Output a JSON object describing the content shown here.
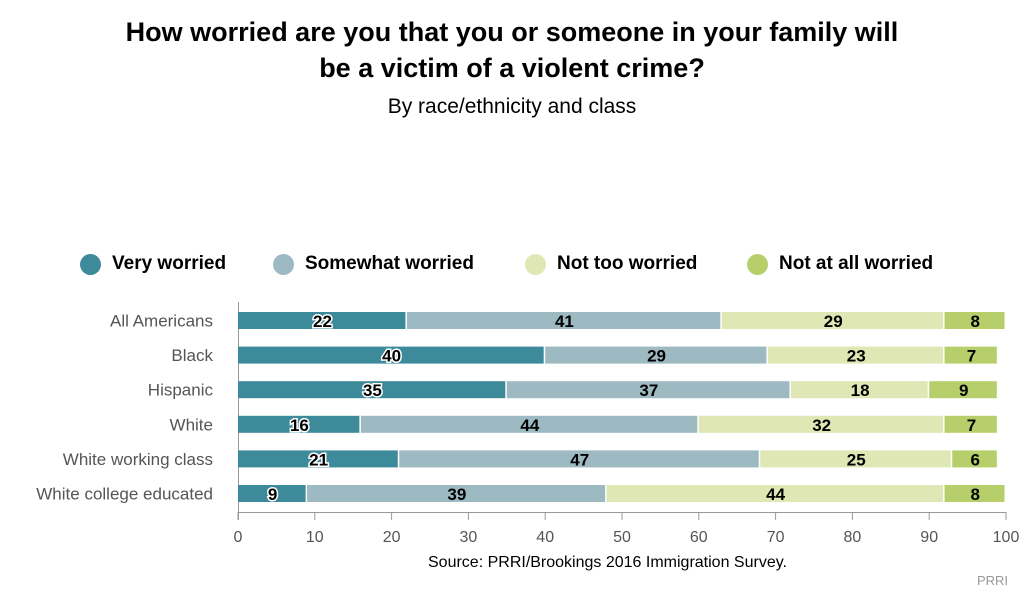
{
  "chart_data": {
    "type": "bar",
    "orientation": "horizontal",
    "stacked": true,
    "title_lines": [
      "How worried are you that you or someone in your family will",
      "be a victim of a violent crime?"
    ],
    "subtitle": "By race/ethnicity and class",
    "categories": [
      "All Americans",
      "Black",
      "Hispanic",
      "White",
      "White working class",
      "White college educated"
    ],
    "series": [
      {
        "name": "Very worried",
        "color": "#3d8a9b",
        "values": [
          22,
          40,
          35,
          16,
          21,
          9
        ]
      },
      {
        "name": "Somewhat worried",
        "color": "#9db9c2",
        "values": [
          41,
          29,
          37,
          44,
          47,
          39
        ]
      },
      {
        "name": "Not too worried",
        "color": "#dfe8b4",
        "values": [
          29,
          23,
          18,
          32,
          25,
          44
        ]
      },
      {
        "name": "Not at all worried",
        "color": "#b6cf6a",
        "values": [
          8,
          7,
          9,
          7,
          6,
          8
        ]
      }
    ],
    "x_ticks": [
      0,
      10,
      20,
      30,
      40,
      50,
      60,
      70,
      80,
      90,
      100
    ],
    "xlim": [
      0,
      100
    ],
    "legend_position": "top",
    "grid": false
  },
  "source": "Source: PRRI/Brookings 2016 Immigration Survey.",
  "brand": "PRRI"
}
